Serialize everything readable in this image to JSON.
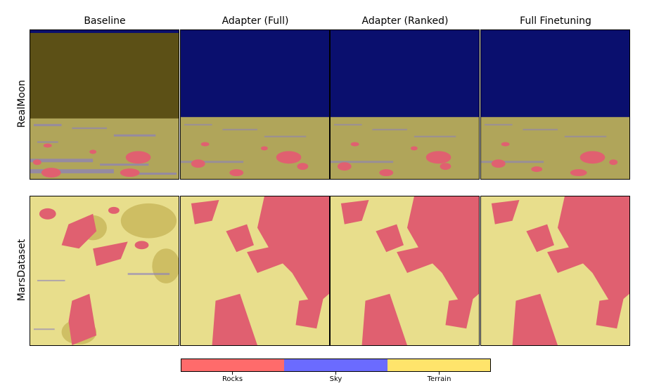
{
  "columns": [
    "Baseline",
    "Adapter (Full)",
    "Adapter (Ranked)",
    "Full Finetuning"
  ],
  "rows": [
    "RealMoon",
    "MarsDataset"
  ],
  "legend": {
    "items": [
      {
        "label": "Rocks",
        "color": "#ff6b6b"
      },
      {
        "label": "Sky",
        "color": "#6b6bff"
      },
      {
        "label": "Terrain",
        "color": "#ffe46b"
      }
    ]
  },
  "colors": {
    "sky_dark": "#0a0f6e",
    "baseline_overlay": "#5c5016",
    "terrain_moon": "#b0a55a",
    "terrain_mars": "#e8de8c",
    "rock_overlay": "#e06070"
  }
}
